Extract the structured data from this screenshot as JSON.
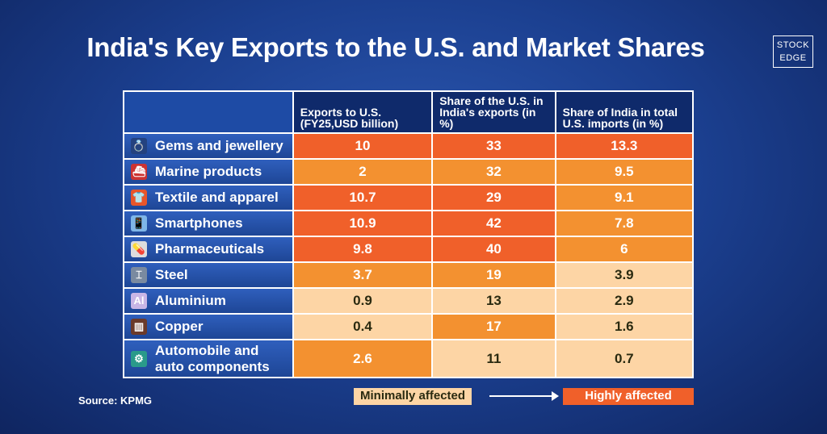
{
  "title": "India's Key Exports to the U.S. and Market Shares",
  "logo": {
    "line1": "STOCK",
    "line2": "EDGE"
  },
  "source": "Source: KPMG",
  "legend": {
    "low": "Minimally affected",
    "high": "Highly affected"
  },
  "colors": {
    "high": "#f0602a",
    "medium": "#f39130",
    "low": "#fdd5a5",
    "header": "#0f2a6b",
    "background": "#1b3f8f"
  },
  "chart_data": {
    "type": "table",
    "columns": [
      "",
      "Exports to U.S. (FY25,USD billion)",
      "Share of the U.S. in India's exports (in %)",
      "Share of India in total U.S. imports (in %)"
    ],
    "rows": [
      {
        "label": "Gems and jewellery",
        "icon": "jewellery-icon",
        "values": [
          "10",
          "33",
          "13.3"
        ],
        "levels": [
          "high",
          "high",
          "high"
        ]
      },
      {
        "label": "Marine products",
        "icon": "ship-icon",
        "values": [
          "2",
          "32",
          "9.5"
        ],
        "levels": [
          "medium",
          "medium",
          "medium"
        ]
      },
      {
        "label": "Textile and apparel",
        "icon": "shirt-icon",
        "values": [
          "10.7",
          "29",
          "9.1"
        ],
        "levels": [
          "high",
          "high",
          "medium"
        ]
      },
      {
        "label": "Smartphones",
        "icon": "smartphone-icon",
        "values": [
          "10.9",
          "42",
          "7.8"
        ],
        "levels": [
          "high",
          "high",
          "medium"
        ]
      },
      {
        "label": "Pharmaceuticals",
        "icon": "medicine-icon",
        "values": [
          "9.8",
          "40",
          "6"
        ],
        "levels": [
          "high",
          "high",
          "medium"
        ]
      },
      {
        "label": "Steel",
        "icon": "steel-beam-icon",
        "values": [
          "3.7",
          "19",
          "3.9"
        ],
        "levels": [
          "medium",
          "medium",
          "low"
        ]
      },
      {
        "label": "Aluminium",
        "icon": "aluminium-element-icon",
        "values": [
          "0.9",
          "13",
          "2.9"
        ],
        "levels": [
          "low",
          "low",
          "low"
        ]
      },
      {
        "label": "Copper",
        "icon": "copper-coil-icon",
        "values": [
          "0.4",
          "17",
          "1.6"
        ],
        "levels": [
          "low",
          "medium",
          "low"
        ]
      },
      {
        "label": "Automobile and auto components",
        "icon": "auto-components-icon",
        "values": [
          "2.6",
          "11",
          "0.7"
        ],
        "levels": [
          "medium",
          "low",
          "low"
        ]
      }
    ]
  }
}
